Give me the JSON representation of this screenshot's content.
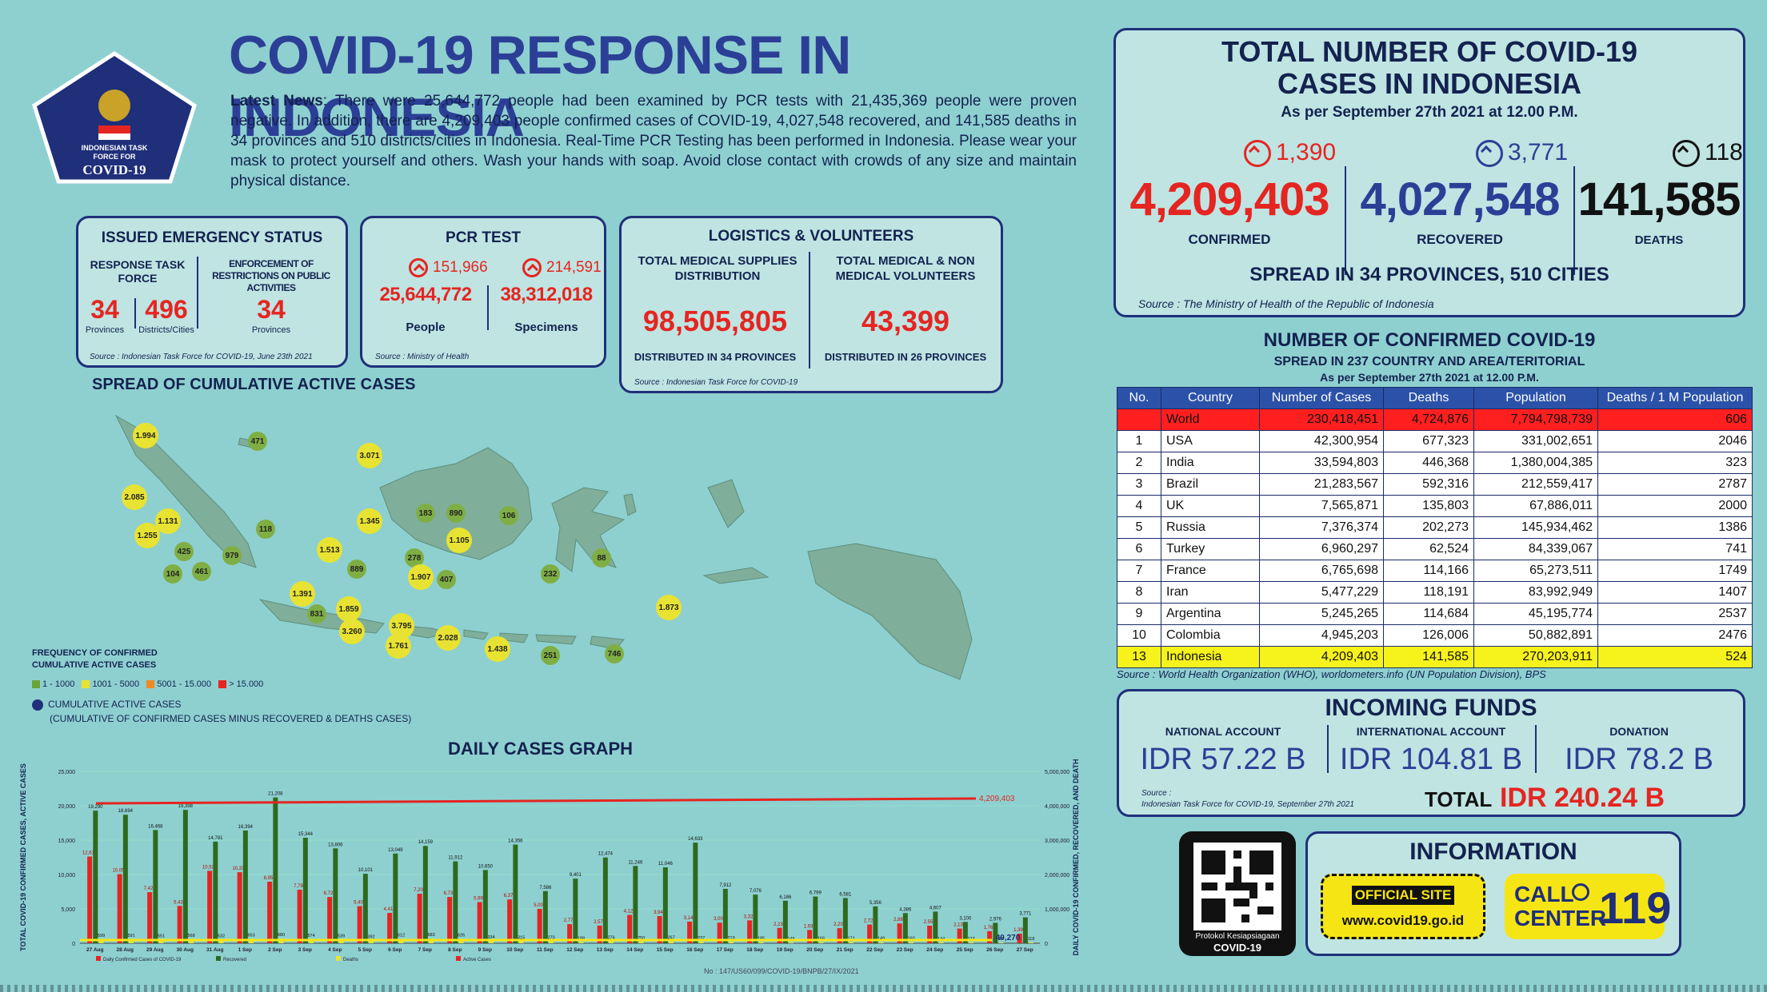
{
  "header": {
    "logo_lines": [
      "INDONESIAN TASK",
      "FORCE FOR",
      "COVID-19"
    ],
    "title": "COVID-19 RESPONSE IN INDONESIA",
    "news_lead": "Latest News",
    "news_text": ": There were 25,644,772 people had been examined by PCR tests with 21,435,369 people were proven negative. In addition, there are 4,209,403 people confirmed cases of COVID-19, 4,027,548 recovered, and 141,585 deaths in 34 provinces and 510 districts/cities in Indonesia. Real-Time PCR Testing has been performed in Indonesia. Please wear your mask to protect yourself and others. Wash your hands with soap. Avoid close contact with crowds of any size and maintain physical distance."
  },
  "emergency": {
    "title": "ISSUED EMERGENCY STATUS",
    "col1_label": "RESPONSE TASK FORCE",
    "col2_label": "ENFORCEMENT OF RESTRICTIONS ON PUBLIC ACTIVITIES",
    "v1": "34",
    "v1_unit": "Provinces",
    "v2": "496",
    "v2_unit": "Districts/Cities",
    "v3": "34",
    "v3_unit": "Provinces",
    "source": "Source : Indonesian Task Force for COVID-19, June 23th 2021"
  },
  "pcr": {
    "title": "PCR TEST",
    "inc1": "151,966",
    "inc2": "214,591",
    "v1": "25,644,772",
    "v2": "38,312,018",
    "l1": "People",
    "l2": "Specimens",
    "source": "Source : Ministry of Health"
  },
  "logistics": {
    "title": "LOGISTICS & VOLUNTEERS",
    "c1_label": "TOTAL MEDICAL SUPPLIES DISTRIBUTION",
    "c2_label": "TOTAL MEDICAL & NON MEDICAL VOLUNTEERS",
    "v1": "98,505,805",
    "v2": "43,399",
    "s1": "DISTRIBUTED IN 34 PROVINCES",
    "s2": "DISTRIBUTED IN 26 PROVINCES",
    "source": "Source : Indonesian Task Force for COVID-19"
  },
  "totals": {
    "title1": "TOTAL NUMBER OF COVID-19",
    "title2": "CASES IN INDONESIA",
    "asof": "As per September 27th 2021 at 12.00 P.M.",
    "confirmed_inc": "1,390",
    "recovered_inc": "3,771",
    "deaths_inc": "118",
    "confirmed": "4,209,403",
    "recovered": "4,027,548",
    "deaths": "141,585",
    "confirmed_label": "CONFIRMED",
    "recovered_label": "RECOVERED",
    "deaths_label": "DEATHS",
    "spread": "SPREAD IN 34 PROVINCES, 510 CITIES",
    "source": "Source : The Ministry of Health of the Republic of Indonesia",
    "colors": {
      "confirmed": "#e52521",
      "recovered": "#2c3f96",
      "deaths": "#111111"
    }
  },
  "world": {
    "title": "NUMBER OF CONFIRMED COVID-19",
    "subtitle": "SPREAD IN 237 COUNTRY AND AREA/TERITORIAL",
    "asof": "As per September 27th 2021 at 12.00 P.M.",
    "headers": [
      "No.",
      "Country",
      "Number of Cases",
      "Deaths",
      "Population",
      "Deaths / 1 M Population"
    ],
    "rows": [
      [
        "",
        "World",
        "230,418,451",
        "4,724,876",
        "7,794,798,739",
        "606"
      ],
      [
        "1",
        "USA",
        "42,300,954",
        "677,323",
        "331,002,651",
        "2046"
      ],
      [
        "2",
        "India",
        "33,594,803",
        "446,368",
        "1,380,004,385",
        "323"
      ],
      [
        "3",
        "Brazil",
        "21,283,567",
        "592,316",
        "212,559,417",
        "2787"
      ],
      [
        "4",
        "UK",
        "7,565,871",
        "135,803",
        "67,886,011",
        "2000"
      ],
      [
        "5",
        "Russia",
        "7,376,374",
        "202,273",
        "145,934,462",
        "1386"
      ],
      [
        "6",
        "Turkey",
        "6,960,297",
        "62,524",
        "84,339,067",
        "741"
      ],
      [
        "7",
        "France",
        "6,765,698",
        "114,166",
        "65,273,511",
        "1749"
      ],
      [
        "8",
        "Iran",
        "5,477,229",
        "118,191",
        "83,992,949",
        "1407"
      ],
      [
        "9",
        "Argentina",
        "5,245,265",
        "114,684",
        "45,195,774",
        "2537"
      ],
      [
        "10",
        "Colombia",
        "4,945,203",
        "126,006",
        "50,882,891",
        "2476"
      ],
      [
        "13",
        "Indonesia",
        "4,209,403",
        "141,585",
        "270,203,911",
        "524"
      ]
    ],
    "source": "Source : World Health Organization (WHO), worldometers.info (UN Population Division), BPS"
  },
  "funds": {
    "title": "INCOMING FUNDS",
    "l1": "NATIONAL ACCOUNT",
    "l2": "INTERNATIONAL ACCOUNT",
    "l3": "DONATION",
    "v1": "IDR 57.22 B",
    "v2": "IDR 104.81 B",
    "v3": "IDR 78.2 B",
    "source1": "Source :",
    "source2": "Indonesian Task Force for COVID-19, September 27th 2021",
    "total_label": "TOTAL",
    "total": "IDR 240.24 B"
  },
  "info": {
    "qr_caption1": "Protokol Kesiapsiagaan",
    "qr_caption2": "COVID-19",
    "title": "INFORMATION",
    "official": "OFFICIAL SITE",
    "url": "www.covid19.go.id",
    "call1": "CALL",
    "call2": "CENTER",
    "number": "119"
  },
  "map": {
    "title": "SPREAD OF CUMULATIVE ACTIVE CASES",
    "legend_title1": "FREQUENCY OF CONFIRMED",
    "legend_title2": "CUMULATIVE ACTIVE CASES",
    "legend": [
      {
        "label": "1 - 1000",
        "color": "#6aa43a"
      },
      {
        "label": "1001 - 5000",
        "color": "#e8e332"
      },
      {
        "label": "5001 - 15.000",
        "color": "#f08a24"
      },
      {
        "label": "> 15.000",
        "color": "#e52521"
      }
    ],
    "legend_dot": "CUMULATIVE ACTIVE CASES",
    "legend_note": "(CUMULATIVE OF CONFIRMED CASES MINUS RECOVERED & DEATHS CASES)",
    "bubbles": [
      {
        "v": "1.994",
        "c": "y"
      },
      {
        "v": "471",
        "c": "g"
      },
      {
        "v": "3.071",
        "c": "y"
      },
      {
        "v": "2.085",
        "c": "y"
      },
      {
        "v": "1.131",
        "c": "y"
      },
      {
        "v": "1.255",
        "c": "y"
      },
      {
        "v": "425",
        "c": "g"
      },
      {
        "v": "979",
        "c": "g"
      },
      {
        "v": "104",
        "c": "g"
      },
      {
        "v": "461",
        "c": "g"
      },
      {
        "v": "118",
        "c": "g"
      },
      {
        "v": "1.513",
        "c": "y"
      },
      {
        "v": "1.345",
        "c": "y"
      },
      {
        "v": "183",
        "c": "g"
      },
      {
        "v": "890",
        "c": "g"
      },
      {
        "v": "106",
        "c": "g"
      },
      {
        "v": "1.105",
        "c": "y"
      },
      {
        "v": "278",
        "c": "g"
      },
      {
        "v": "889",
        "c": "g"
      },
      {
        "v": "1.907",
        "c": "y"
      },
      {
        "v": "407",
        "c": "g"
      },
      {
        "v": "232",
        "c": "g"
      },
      {
        "v": "88",
        "c": "g"
      },
      {
        "v": "1.873",
        "c": "y"
      },
      {
        "v": "1.391",
        "c": "y"
      },
      {
        "v": "831",
        "c": "g"
      },
      {
        "v": "1.859",
        "c": "y"
      },
      {
        "v": "3.260",
        "c": "y"
      },
      {
        "v": "3.795",
        "c": "y"
      },
      {
        "v": "1.761",
        "c": "y"
      },
      {
        "v": "2.028",
        "c": "y"
      },
      {
        "v": "1.438",
        "c": "y"
      },
      {
        "v": "251",
        "c": "g"
      },
      {
        "v": "746",
        "c": "g"
      }
    ]
  },
  "chart_data": {
    "type": "bar",
    "title": "DAILY CASES GRAPH",
    "ylabel": "TOTAL COVID-19 CONFIRMED CASES, ACTIVE CASES",
    "y2label": "DAILY COVID-19 CONFIRMED, RECOVERED, AND DEATH",
    "ylim": [
      0,
      25000
    ],
    "y2lim": [
      0,
      5000000
    ],
    "yticks": [
      "25,000",
      "20,000",
      "15,000",
      "10,000",
      "5,000",
      "0"
    ],
    "y2ticks": [
      "5,000,000",
      "4,000,000",
      "3,000,000",
      "2,000,000",
      "1,000,000",
      "0"
    ],
    "categories": [
      "27 Aug",
      "28 Aug",
      "29 Aug",
      "30 Aug",
      "31 Aug",
      "1 Sep",
      "2 Sep",
      "3 Sep",
      "4 Sep",
      "5 Sep",
      "6 Sep",
      "7 Sep",
      "8 Sep",
      "9 Sep",
      "10 Sep",
      "11 Sep",
      "12 Sep",
      "13 Sep",
      "14 Sep",
      "15 Sep",
      "16 Sep",
      "17 Sep",
      "18 Sep",
      "19 Sep",
      "20 Sep",
      "21 Sep",
      "22 Sep",
      "23 Sep",
      "24 Sep",
      "25 Sep",
      "26 Sep",
      "27 Sep"
    ],
    "series": [
      {
        "name": "Daily Confirmed Cases of COVID-19",
        "color": "#e52521",
        "values": [
          12618,
          10050,
          7427,
          5436,
          10534,
          10337,
          8955,
          7797,
          6727,
          5403,
          4413,
          7201,
          6731,
          5990,
          6376,
          5001,
          2771,
          2577,
          4128,
          3948,
          3145,
          3000,
          3328,
          2234,
          1932,
          2200,
          2720,
          2881,
          2557,
          2137,
          1760,
          1390
        ]
      },
      {
        "name": "Recovered",
        "color": "#2d6a1f",
        "values": [
          19290,
          18694,
          16468,
          19398,
          14781,
          16394,
          21208,
          15344,
          13806,
          10101,
          13049,
          14159,
          11912,
          10650,
          14356,
          7586,
          9401,
          12474,
          11246,
          11046,
          14633,
          7912,
          7076,
          6186,
          6799,
          6581,
          5356,
          4386,
          4607,
          3100,
          2976,
          3771
        ]
      },
      {
        "name": "Deaths",
        "color": "#e8e332",
        "values": [
          599,
          591,
          551,
          568,
          532,
          653,
          680,
          574,
          539,
          392,
          612,
          683,
          626,
          334,
          315,
          270,
          188,
          276,
          250,
          267,
          237,
          219,
          185,
          145,
          166,
          171,
          149,
          160,
          144,
          123,
          88,
          118
        ]
      },
      {
        "name": "Active Cases",
        "color": "#e52521",
        "line_end_label": "4,209,403",
        "line_value": 4209403
      }
    ],
    "end_label": "40,270",
    "footer_note": "No : 147/US60/099/COVID-19/BNPB/27/IX/2021"
  }
}
